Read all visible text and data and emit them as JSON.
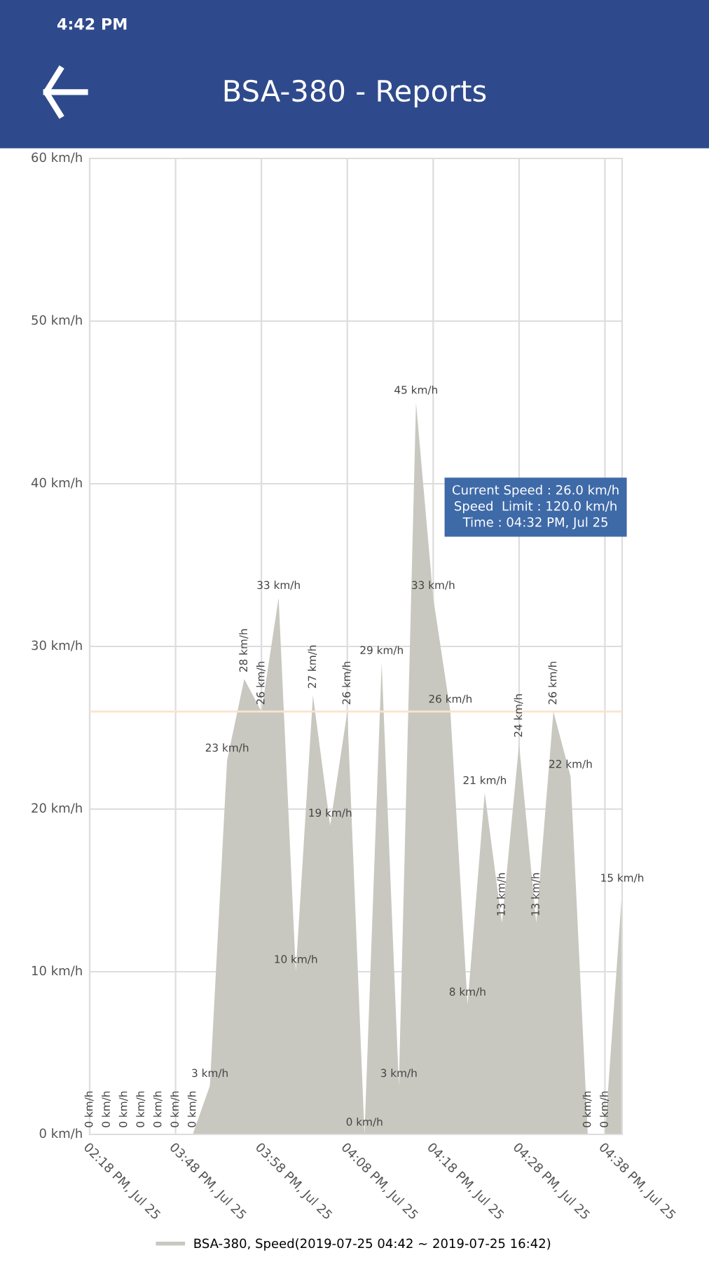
{
  "chart_data": {
    "type": "area",
    "title": "BSA-380 - Reports",
    "categories": [
      "02:18 PM, Jul 25",
      null,
      null,
      null,
      null,
      "03:48 PM, Jul 25",
      null,
      null,
      null,
      null,
      "03:58 PM, Jul 25",
      null,
      null,
      null,
      null,
      "04:08 PM, Jul 25",
      null,
      null,
      null,
      null,
      "04:18 PM, Jul 25",
      null,
      null,
      null,
      null,
      "04:28 PM, Jul 25",
      null,
      null,
      null,
      null,
      "04:38 PM, Jul 25",
      null
    ],
    "series": [
      {
        "name": "BSA-380, Speed(2019-07-25 04:42 ~ 2019-07-25 16:42)",
        "color": "#c8c8c0",
        "values": [
          0,
          0,
          0,
          0,
          0,
          0,
          0,
          3,
          23,
          28,
          26,
          33,
          10,
          27,
          19,
          26,
          0,
          29,
          3,
          45,
          33,
          26,
          8,
          21,
          13,
          24,
          13,
          26,
          22,
          0,
          0,
          15
        ],
        "value_labels": [
          "0 km/h",
          "0 km/h",
          "0 km/h",
          "0 km/h",
          "0 km/h",
          "0 km/h",
          "0 km/h",
          "3 km/h",
          "23 km/h",
          "28 km/h",
          "26 km/h",
          "33 km/h",
          "10 km/h",
          "27 km/h",
          "19 km/h",
          "26 km/h",
          "0 km/h",
          "29 km/h",
          "3 km/h",
          "45 km/h",
          "33 km/h",
          "26 km/h",
          "8 km/h",
          "21 km/h",
          "13 km/h",
          "24 km/h",
          "13 km/h",
          "26 km/h",
          "22 km/h",
          "0 km/h",
          "0 km/h",
          "15 km/h"
        ]
      }
    ],
    "ylim": [
      0,
      60
    ],
    "yticks": [
      {
        "value": 0,
        "label": "0 km/h"
      },
      {
        "value": 10,
        "label": "10 km/h"
      },
      {
        "value": 20,
        "label": "20 km/h"
      },
      {
        "value": 30,
        "label": "30 km/h"
      },
      {
        "value": 40,
        "label": "40 km/h"
      },
      {
        "value": 50,
        "label": "50 km/h"
      },
      {
        "value": 60,
        "label": "60 km/h"
      }
    ],
    "grid": true,
    "legend": "bottom",
    "ref_lines": [
      {
        "axis": "y",
        "value": 26,
        "label": null,
        "color": "#fbe3cc"
      }
    ],
    "annotations": [
      "4:42 PM",
      "Current Speed : 26.0 km/h\nSpeed  Limit : 120.0 km/h\nTime : 04:32 PM, Jul 25"
    ]
  }
}
